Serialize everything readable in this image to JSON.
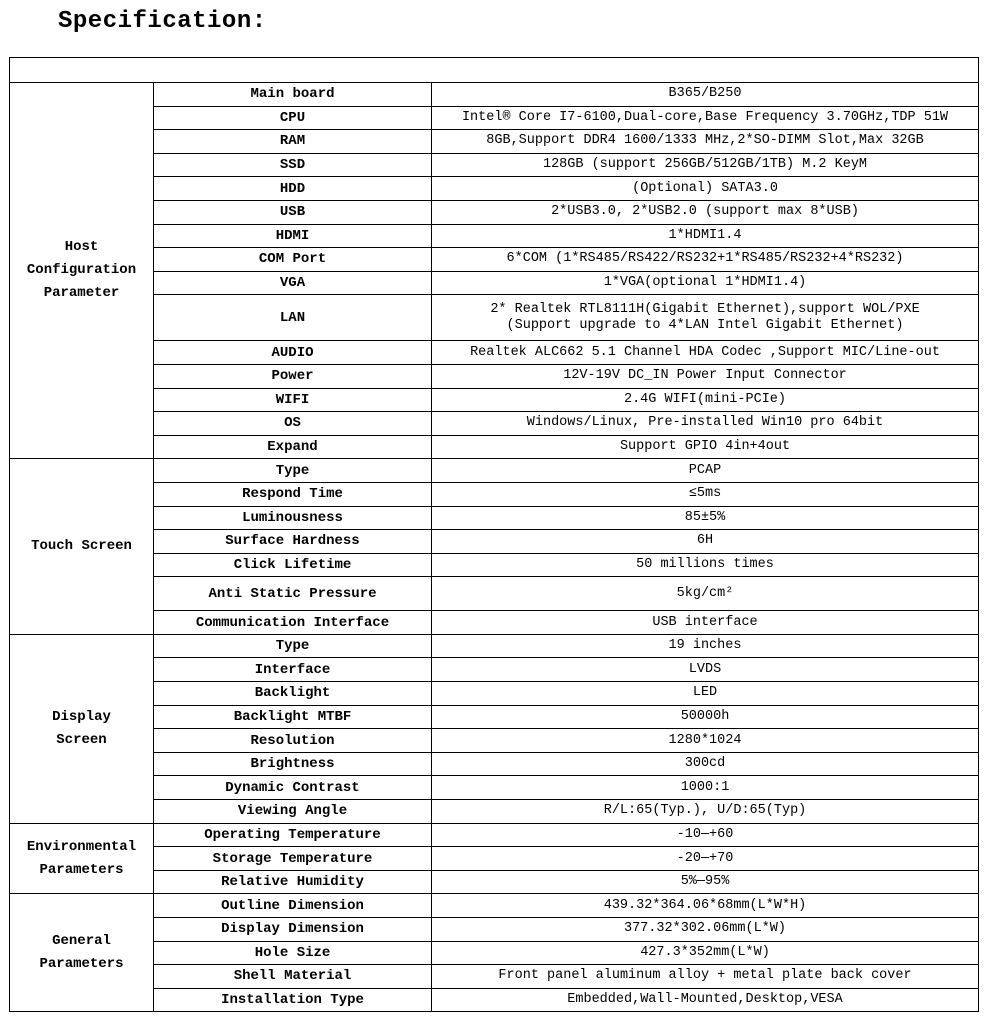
{
  "title": "Specification:",
  "header_row": "",
  "groups": [
    {
      "name": "Host\nConfiguration\nParameter",
      "rows": [
        [
          "Main board",
          "B365/B250"
        ],
        [
          "CPU",
          "Intel® Core I7-6100,Dual-core,Base Frequency 3.70GHz,TDP 51W"
        ],
        [
          "RAM",
          "8GB,Support DDR4 1600/1333 MHz,2*SO-DIMM Slot,Max 32GB"
        ],
        [
          "SSD",
          "128GB (support 256GB/512GB/1TB) M.2 KeyM"
        ],
        [
          "HDD",
          "(Optional) SATA3.0"
        ],
        [
          "USB",
          "2*USB3.0, 2*USB2.0 (support max 8*USB)"
        ],
        [
          "HDMI",
          "1*HDMI1.4"
        ],
        [
          "COM Port",
          "6*COM (1*RS485/RS422/RS232+1*RS485/RS232+4*RS232)"
        ],
        [
          "VGA",
          "1*VGA(optional 1*HDMI1.4)"
        ],
        [
          "LAN",
          "2* Realtek RTL8111H(Gigabit Ethernet),support WOL/PXE\n(Support upgrade to 4*LAN Intel Gigabit Ethernet)"
        ],
        [
          "AUDIO",
          "Realtek ALC662 5.1 Channel HDA Codec ,Support MIC/Line-out"
        ],
        [
          "Power",
          "12V-19V DC_IN Power Input Connector"
        ],
        [
          "WIFI",
          "2.4G WIFI(mini-PCIe)"
        ],
        [
          "OS",
          "Windows/Linux,  Pre-installed Win10 pro 64bit"
        ],
        [
          "Expand",
          "Support GPIO 4in+4out"
        ]
      ]
    },
    {
      "name": "Touch Screen",
      "rows": [
        [
          "Type",
          "PCAP"
        ],
        [
          "Respond Time",
          "≤5ms"
        ],
        [
          "Luminousness",
          "85±5%"
        ],
        [
          "Surface Hardness",
          "6H"
        ],
        [
          "Click Lifetime",
          "50 millions times"
        ],
        [
          "Anti Static Pressure",
          "5kg/cm²"
        ],
        [
          "Communication Interface",
          "USB interface"
        ]
      ]
    },
    {
      "name": "Display\nScreen",
      "rows": [
        [
          "Type",
          "19 inches"
        ],
        [
          "Interface",
          "LVDS"
        ],
        [
          "Backlight",
          "LED"
        ],
        [
          "Backlight MTBF",
          "50000h"
        ],
        [
          "Resolution",
          "1280*1024"
        ],
        [
          "Brightness",
          "300cd"
        ],
        [
          "Dynamic Contrast",
          "1000:1"
        ],
        [
          "Viewing Angle",
          "R/L:65(Typ.), U/D:65(Typ)"
        ]
      ]
    },
    {
      "name": "Environmental\nParameters",
      "rows": [
        [
          "Operating Temperature",
          "-10—+60"
        ],
        [
          "Storage Temperature",
          "-20—+70"
        ],
        [
          "Relative Humidity",
          "5%—95%"
        ]
      ]
    },
    {
      "name": "General\nParameters",
      "rows": [
        [
          "Outline Dimension",
          "439.32*364.06*68mm(L*W*H)"
        ],
        [
          "Display Dimension",
          "377.32*302.06mm(L*W)"
        ],
        [
          "Hole Size",
          "427.3*352mm(L*W)"
        ],
        [
          "Shell Material",
          "Front panel aluminum alloy + metal plate back cover"
        ],
        [
          "Installation Type",
          "Embedded,Wall-Mounted,Desktop,VESA"
        ]
      ]
    }
  ]
}
